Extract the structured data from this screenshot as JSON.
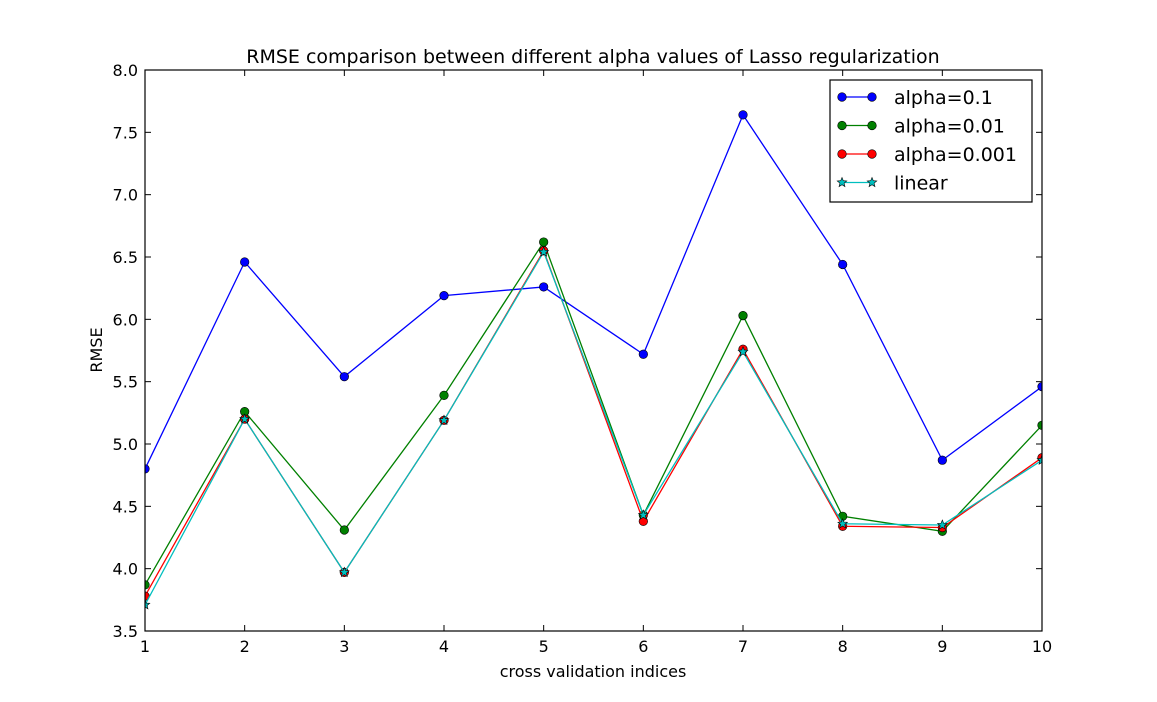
{
  "chart_data": {
    "type": "line",
    "title": "RMSE comparison between different alpha values of Lasso regularization",
    "xlabel": "cross validation indices",
    "ylabel": "RMSE",
    "xlim": [
      1,
      10
    ],
    "ylim": [
      3.5,
      8.0
    ],
    "xticks": [
      "1",
      "2",
      "3",
      "4",
      "5",
      "6",
      "7",
      "8",
      "9",
      "10"
    ],
    "yticks": [
      "3.5",
      "4.0",
      "4.5",
      "5.0",
      "5.5",
      "6.0",
      "6.5",
      "7.0",
      "7.5",
      "8.0"
    ],
    "grid": false,
    "legend_position": "top-right",
    "x": [
      1,
      2,
      3,
      4,
      5,
      6,
      7,
      8,
      9,
      10
    ],
    "series": [
      {
        "name": "alpha=0.1",
        "color": "#0000ff",
        "marker": "circle",
        "values": [
          4.8,
          6.46,
          5.54,
          6.19,
          6.26,
          5.72,
          7.64,
          6.44,
          4.87,
          5.46
        ]
      },
      {
        "name": "alpha=0.01",
        "color": "#008000",
        "marker": "circle",
        "values": [
          3.87,
          5.26,
          4.31,
          5.39,
          6.62,
          4.43,
          6.03,
          4.42,
          4.3,
          5.15
        ]
      },
      {
        "name": "alpha=0.001",
        "color": "#ff0000",
        "marker": "circle",
        "values": [
          3.78,
          5.2,
          3.97,
          5.19,
          6.55,
          4.38,
          5.76,
          4.34,
          4.33,
          4.89
        ]
      },
      {
        "name": "linear",
        "color": "#00bfbf",
        "marker": "star",
        "values": [
          3.71,
          5.2,
          3.97,
          5.19,
          6.54,
          4.43,
          5.74,
          4.36,
          4.35,
          4.87
        ]
      }
    ]
  }
}
